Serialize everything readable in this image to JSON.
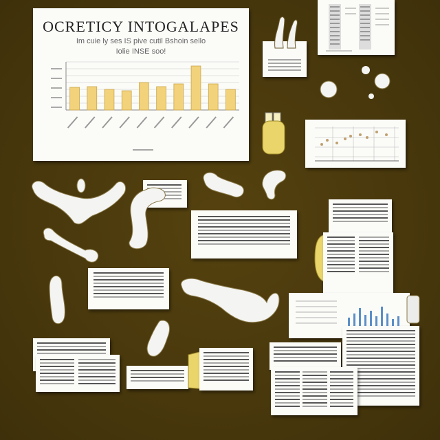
{
  "poster": {
    "title": "OCRETICY INTOGALAPES",
    "subtitle_1": "Im cuie ly ses IS pive cutil Bshoin sello",
    "subtitle_2": "Iolie INSE soo!"
  },
  "chart_data": {
    "type": "bar",
    "categories": [
      "",
      "",
      "",
      "",
      "",
      "",
      "",
      "",
      "",
      ""
    ],
    "values": [
      33,
      34,
      30,
      28,
      40,
      34,
      38,
      64,
      38,
      30
    ],
    "title": "OCRETICY INTOGALAPES",
    "xlabel": "",
    "ylabel": "",
    "ylim": [
      0,
      70
    ],
    "grid": true,
    "bar_color": "#f2d27a",
    "bar_edge": "#c9a74c"
  },
  "colors": {
    "background": "#4a3a10",
    "paper": "#fbfbf8",
    "yellow_accent": "#e9d56a",
    "bone": "#f4f4f2",
    "blue_bars": "#5a8fc8"
  },
  "icons": [
    "bone-shape",
    "tooth-shape",
    "yellow-jar",
    "document-sheet"
  ]
}
